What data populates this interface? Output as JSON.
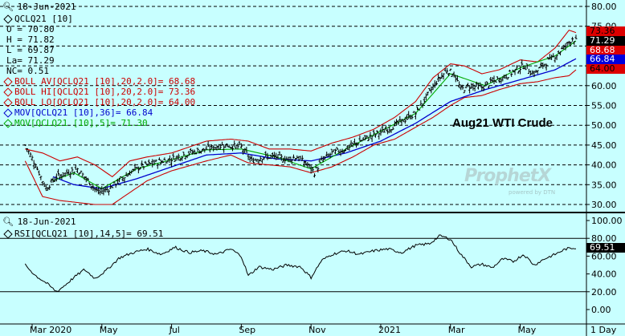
{
  "price_panel": {
    "date": "18-Jun-2021",
    "caption": "Aug21 WTI Crude",
    "watermark": "ProphetX",
    "watermark_sub": "powered by DTN",
    "legend": [
      {
        "text": "QCLQ21 [10]",
        "color": "#000000"
      },
      {
        "text": "O = 70.80",
        "color": "#000000"
      },
      {
        "text": "H = 71.82",
        "color": "#000000"
      },
      {
        "text": "L = 69.87",
        "color": "#000000"
      },
      {
        "text": "La= 71.29",
        "color": "#000000"
      },
      {
        "text": "NC= 0.51",
        "color": "#000000"
      },
      {
        "text": "BOLL AV[QCLQ21 [10],20,2.0]= 68.68",
        "color": "#cc0000"
      },
      {
        "text": "BOLL HI[QCLQ21 [10],20,2.0]= 73.36",
        "color": "#cc0000"
      },
      {
        "text": "BOLL LO[QCLQ21 [10],20,2.0]= 64.00",
        "color": "#cc0000"
      },
      {
        "text": "MOV[QCLQ21 [10],36]= 66.84",
        "color": "#0000cc"
      },
      {
        "text": "MOV[QCLQ21 [10],5]= 71.30",
        "color": "#00aa00"
      }
    ],
    "price_tags": [
      {
        "text": "73.36",
        "value": 73.36,
        "bg": "#dd0000",
        "fg": "#000000"
      },
      {
        "text": "71.29",
        "value": 71.29,
        "bg": "#000000",
        "fg": "#ffffff"
      },
      {
        "text": "68.68",
        "value": 68.68,
        "bg": "#dd0000",
        "fg": "#ffffff"
      },
      {
        "text": "66.84",
        "value": 66.84,
        "bg": "#0000dd",
        "fg": "#ffffff"
      },
      {
        "text": "64.00",
        "value": 64.0,
        "bg": "#dd0000",
        "fg": "#000000"
      }
    ]
  },
  "rsi_panel": {
    "date": "18-Jun-2021",
    "legend": "RSI[QCLQ21 [10],14,5]= 69.51",
    "tag": {
      "text": "69.51",
      "value": 69.51,
      "bg": "#000000",
      "fg": "#ffffff"
    }
  },
  "chart_data": [
    {
      "type": "candlestick",
      "title": "Aug21 WTI Crude",
      "ylim": [
        29,
        82
      ],
      "yticks": [
        "30.00",
        "35.00",
        "40.00",
        "45.00",
        "50.00",
        "55.00",
        "60.00",
        "65.00",
        "70.00",
        "75.00",
        "80.00"
      ],
      "ytick_values": [
        30,
        35,
        40,
        45,
        50,
        55,
        60,
        65,
        70,
        75,
        80
      ],
      "x_labels": [
        "Mar 2020",
        "May",
        "Jul",
        "Sep",
        "Nov",
        "2021",
        "Mar",
        "May"
      ],
      "x_label_months": [
        0,
        2,
        4,
        6,
        8,
        10,
        12,
        14
      ],
      "x_unit_label": "1 Day",
      "x_range_months": [
        0,
        15.9
      ],
      "gridlines_dashed": true,
      "close_path": [
        {
          "m": -0.2,
          "v": 45
        },
        {
          "m": 0.1,
          "v": 40
        },
        {
          "m": 0.4,
          "v": 34
        },
        {
          "m": 0.7,
          "v": 37
        },
        {
          "m": 1.0,
          "v": 38
        },
        {
          "m": 1.3,
          "v": 39
        },
        {
          "m": 1.6,
          "v": 36
        },
        {
          "m": 1.9,
          "v": 33
        },
        {
          "m": 2.2,
          "v": 34
        },
        {
          "m": 2.5,
          "v": 36
        },
        {
          "m": 2.8,
          "v": 38
        },
        {
          "m": 3.1,
          "v": 39.5
        },
        {
          "m": 3.5,
          "v": 40.5
        },
        {
          "m": 4.0,
          "v": 41.5
        },
        {
          "m": 4.5,
          "v": 43
        },
        {
          "m": 5.0,
          "v": 44
        },
        {
          "m": 5.5,
          "v": 45
        },
        {
          "m": 6.0,
          "v": 44.5
        },
        {
          "m": 6.3,
          "v": 41
        },
        {
          "m": 6.6,
          "v": 42
        },
        {
          "m": 7.0,
          "v": 42
        },
        {
          "m": 7.3,
          "v": 41.5
        },
        {
          "m": 7.6,
          "v": 42
        },
        {
          "m": 7.9,
          "v": 40
        },
        {
          "m": 8.1,
          "v": 38
        },
        {
          "m": 8.3,
          "v": 41
        },
        {
          "m": 8.6,
          "v": 43
        },
        {
          "m": 9.0,
          "v": 44
        },
        {
          "m": 9.4,
          "v": 46
        },
        {
          "m": 9.8,
          "v": 47.5
        },
        {
          "m": 10.2,
          "v": 49
        },
        {
          "m": 10.6,
          "v": 51
        },
        {
          "m": 11.0,
          "v": 53
        },
        {
          "m": 11.3,
          "v": 57
        },
        {
          "m": 11.6,
          "v": 61
        },
        {
          "m": 11.9,
          "v": 64
        },
        {
          "m": 12.1,
          "v": 63
        },
        {
          "m": 12.3,
          "v": 59
        },
        {
          "m": 12.6,
          "v": 60
        },
        {
          "m": 12.9,
          "v": 59.5
        },
        {
          "m": 13.2,
          "v": 61
        },
        {
          "m": 13.5,
          "v": 62
        },
        {
          "m": 13.8,
          "v": 63.5
        },
        {
          "m": 14.1,
          "v": 65
        },
        {
          "m": 14.4,
          "v": 63
        },
        {
          "m": 14.7,
          "v": 65.5
        },
        {
          "m": 15.0,
          "v": 67.5
        },
        {
          "m": 15.3,
          "v": 70
        },
        {
          "m": 15.5,
          "v": 72
        },
        {
          "m": 15.6,
          "v": 71.3
        }
      ],
      "boll_hi": [
        {
          "m": -0.2,
          "v": 44
        },
        {
          "m": 0.3,
          "v": 43
        },
        {
          "m": 0.8,
          "v": 41
        },
        {
          "m": 1.3,
          "v": 42
        },
        {
          "m": 1.8,
          "v": 40
        },
        {
          "m": 2.3,
          "v": 37
        },
        {
          "m": 2.8,
          "v": 41
        },
        {
          "m": 3.3,
          "v": 42
        },
        {
          "m": 4.0,
          "v": 43
        },
        {
          "m": 5.0,
          "v": 46
        },
        {
          "m": 5.7,
          "v": 46.5
        },
        {
          "m": 6.2,
          "v": 46
        },
        {
          "m": 6.8,
          "v": 44
        },
        {
          "m": 7.4,
          "v": 44
        },
        {
          "m": 8.0,
          "v": 43.5
        },
        {
          "m": 8.6,
          "v": 45.5
        },
        {
          "m": 9.2,
          "v": 47
        },
        {
          "m": 9.8,
          "v": 49
        },
        {
          "m": 10.4,
          "v": 52
        },
        {
          "m": 11.0,
          "v": 56
        },
        {
          "m": 11.5,
          "v": 62
        },
        {
          "m": 12.0,
          "v": 65.5
        },
        {
          "m": 12.4,
          "v": 65
        },
        {
          "m": 12.9,
          "v": 63
        },
        {
          "m": 13.4,
          "v": 64
        },
        {
          "m": 14.0,
          "v": 66.5
        },
        {
          "m": 14.5,
          "v": 66
        },
        {
          "m": 15.0,
          "v": 69.5
        },
        {
          "m": 15.4,
          "v": 74
        },
        {
          "m": 15.6,
          "v": 73.4
        }
      ],
      "boll_lo": [
        {
          "m": -0.2,
          "v": 41
        },
        {
          "m": 0.3,
          "v": 32
        },
        {
          "m": 0.8,
          "v": 31
        },
        {
          "m": 1.3,
          "v": 30.5
        },
        {
          "m": 1.8,
          "v": 30
        },
        {
          "m": 2.3,
          "v": 30
        },
        {
          "m": 2.8,
          "v": 33
        },
        {
          "m": 3.3,
          "v": 36
        },
        {
          "m": 4.0,
          "v": 38.5
        },
        {
          "m": 5.0,
          "v": 41
        },
        {
          "m": 5.7,
          "v": 42.5
        },
        {
          "m": 6.2,
          "v": 40.5
        },
        {
          "m": 6.8,
          "v": 40
        },
        {
          "m": 7.4,
          "v": 39.5
        },
        {
          "m": 8.0,
          "v": 38
        },
        {
          "m": 8.6,
          "v": 39.5
        },
        {
          "m": 9.2,
          "v": 42
        },
        {
          "m": 9.8,
          "v": 45
        },
        {
          "m": 10.4,
          "v": 46.5
        },
        {
          "m": 11.0,
          "v": 49.5
        },
        {
          "m": 11.5,
          "v": 52
        },
        {
          "m": 12.0,
          "v": 55
        },
        {
          "m": 12.4,
          "v": 57
        },
        {
          "m": 12.9,
          "v": 57.5
        },
        {
          "m": 13.4,
          "v": 59
        },
        {
          "m": 14.0,
          "v": 60.5
        },
        {
          "m": 14.5,
          "v": 61
        },
        {
          "m": 15.0,
          "v": 62
        },
        {
          "m": 15.4,
          "v": 62.5
        },
        {
          "m": 15.6,
          "v": 64
        }
      ],
      "mov36": [
        {
          "m": 0.6,
          "v": 37
        },
        {
          "m": 1.2,
          "v": 35
        },
        {
          "m": 2.0,
          "v": 34
        },
        {
          "m": 3.0,
          "v": 36.5
        },
        {
          "m": 4.0,
          "v": 39.5
        },
        {
          "m": 5.0,
          "v": 42.5
        },
        {
          "m": 6.0,
          "v": 43
        },
        {
          "m": 7.0,
          "v": 41.5
        },
        {
          "m": 8.0,
          "v": 41
        },
        {
          "m": 9.0,
          "v": 43
        },
        {
          "m": 10.0,
          "v": 46
        },
        {
          "m": 11.0,
          "v": 50.5
        },
        {
          "m": 12.0,
          "v": 56
        },
        {
          "m": 13.0,
          "v": 59
        },
        {
          "m": 14.0,
          "v": 61.5
        },
        {
          "m": 15.0,
          "v": 64
        },
        {
          "m": 15.6,
          "v": 66.8
        }
      ],
      "mov5": [
        {
          "m": 0.6,
          "v": 36
        },
        {
          "m": 1.2,
          "v": 38
        },
        {
          "m": 2.0,
          "v": 34
        },
        {
          "m": 3.0,
          "v": 39
        },
        {
          "m": 4.0,
          "v": 41.3
        },
        {
          "m": 5.0,
          "v": 43.8
        },
        {
          "m": 6.0,
          "v": 44
        },
        {
          "m": 7.0,
          "v": 42
        },
        {
          "m": 8.0,
          "v": 39
        },
        {
          "m": 9.0,
          "v": 44
        },
        {
          "m": 10.0,
          "v": 48.5
        },
        {
          "m": 11.0,
          "v": 53
        },
        {
          "m": 12.0,
          "v": 63
        },
        {
          "m": 13.0,
          "v": 60
        },
        {
          "m": 14.0,
          "v": 64.5
        },
        {
          "m": 15.0,
          "v": 67.5
        },
        {
          "m": 15.6,
          "v": 71.3
        }
      ]
    },
    {
      "type": "line",
      "title": "RSI[QCLQ21 [10],14,5]",
      "ylim": [
        -7,
        105
      ],
      "yticks": [
        "0.00",
        "20.00",
        "40.00",
        "60.00",
        "80.00",
        "100.00"
      ],
      "ytick_values": [
        0,
        20,
        40,
        60,
        80,
        100
      ],
      "ref_lines": [
        80,
        20
      ],
      "series": [
        {
          "values": [
            {
              "m": -0.2,
              "v": 50
            },
            {
              "m": 0.1,
              "v": 38
            },
            {
              "m": 0.4,
              "v": 30
            },
            {
              "m": 0.7,
              "v": 20
            },
            {
              "m": 0.9,
              "v": 26
            },
            {
              "m": 1.2,
              "v": 36
            },
            {
              "m": 1.5,
              "v": 45
            },
            {
              "m": 1.8,
              "v": 35
            },
            {
              "m": 2.1,
              "v": 43
            },
            {
              "m": 2.5,
              "v": 58
            },
            {
              "m": 2.9,
              "v": 64
            },
            {
              "m": 3.3,
              "v": 68
            },
            {
              "m": 3.7,
              "v": 62
            },
            {
              "m": 4.1,
              "v": 70
            },
            {
              "m": 4.5,
              "v": 64
            },
            {
              "m": 4.9,
              "v": 66
            },
            {
              "m": 5.3,
              "v": 62
            },
            {
              "m": 5.7,
              "v": 68
            },
            {
              "m": 6.0,
              "v": 60
            },
            {
              "m": 6.2,
              "v": 38
            },
            {
              "m": 6.5,
              "v": 48
            },
            {
              "m": 6.9,
              "v": 45
            },
            {
              "m": 7.3,
              "v": 50
            },
            {
              "m": 7.7,
              "v": 48
            },
            {
              "m": 8.0,
              "v": 36
            },
            {
              "m": 8.3,
              "v": 55
            },
            {
              "m": 8.6,
              "v": 62
            },
            {
              "m": 9.0,
              "v": 66
            },
            {
              "m": 9.4,
              "v": 62
            },
            {
              "m": 9.8,
              "v": 66
            },
            {
              "m": 10.2,
              "v": 68
            },
            {
              "m": 10.6,
              "v": 64
            },
            {
              "m": 11.0,
              "v": 72
            },
            {
              "m": 11.4,
              "v": 74
            },
            {
              "m": 11.7,
              "v": 83
            },
            {
              "m": 12.0,
              "v": 79
            },
            {
              "m": 12.3,
              "v": 62
            },
            {
              "m": 12.6,
              "v": 48
            },
            {
              "m": 12.9,
              "v": 51
            },
            {
              "m": 13.2,
              "v": 47
            },
            {
              "m": 13.5,
              "v": 57
            },
            {
              "m": 13.8,
              "v": 54
            },
            {
              "m": 14.1,
              "v": 62
            },
            {
              "m": 14.4,
              "v": 50
            },
            {
              "m": 14.7,
              "v": 57
            },
            {
              "m": 15.0,
              "v": 62
            },
            {
              "m": 15.3,
              "v": 68
            },
            {
              "m": 15.6,
              "v": 69.5
            }
          ]
        }
      ]
    }
  ]
}
